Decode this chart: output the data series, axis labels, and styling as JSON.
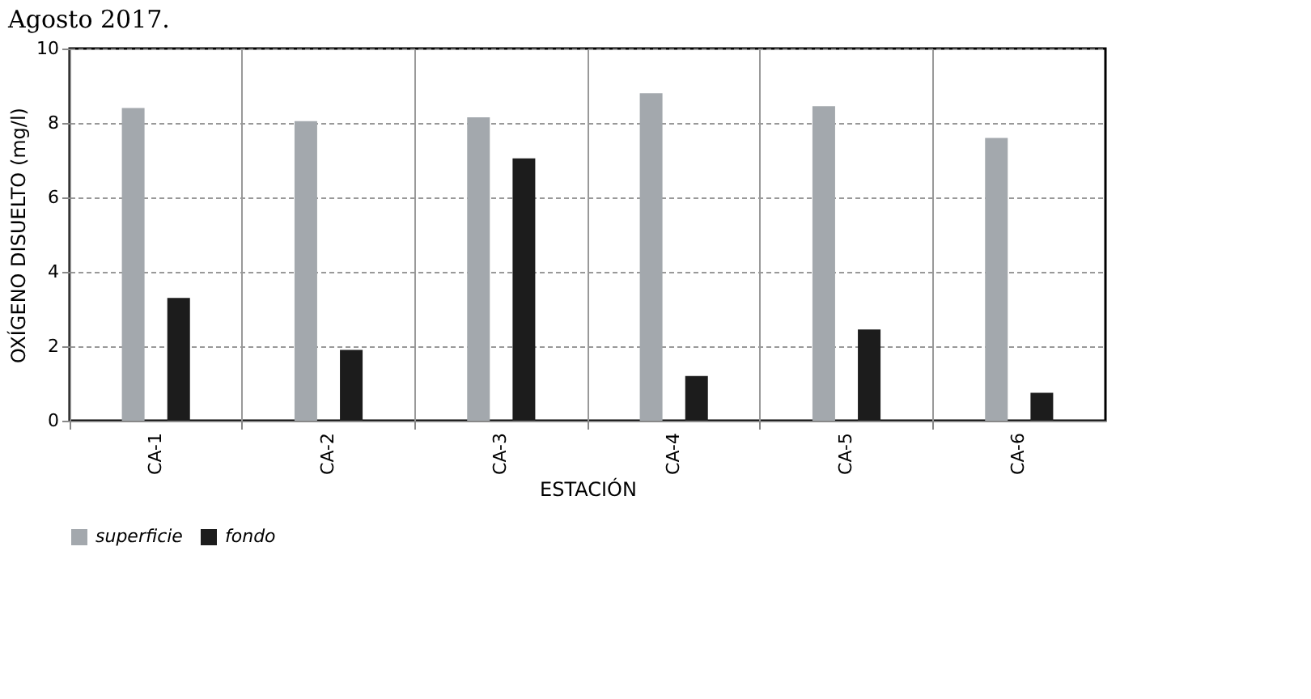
{
  "chart_data": {
    "type": "bar",
    "title": "Agosto 2017.",
    "xlabel": "ESTACIÓN",
    "ylabel": "OXÍGENO DISUELTO (mg/l)",
    "categories": [
      "CA-1",
      "CA-2",
      "CA-3",
      "CA-4",
      "CA-5",
      "CA-6"
    ],
    "series": [
      {
        "name": "superficie",
        "color": "#a3a8ad",
        "values": [
          8.4,
          8.05,
          8.15,
          8.8,
          8.45,
          7.6
        ]
      },
      {
        "name": "fondo",
        "color": "#1c1c1c",
        "values": [
          3.3,
          1.9,
          7.05,
          1.2,
          2.45,
          0.75
        ]
      }
    ],
    "ylim": [
      0,
      10
    ],
    "yticks": [
      0,
      2,
      4,
      6,
      8,
      10
    ],
    "grid": true,
    "legend": "bottom"
  }
}
